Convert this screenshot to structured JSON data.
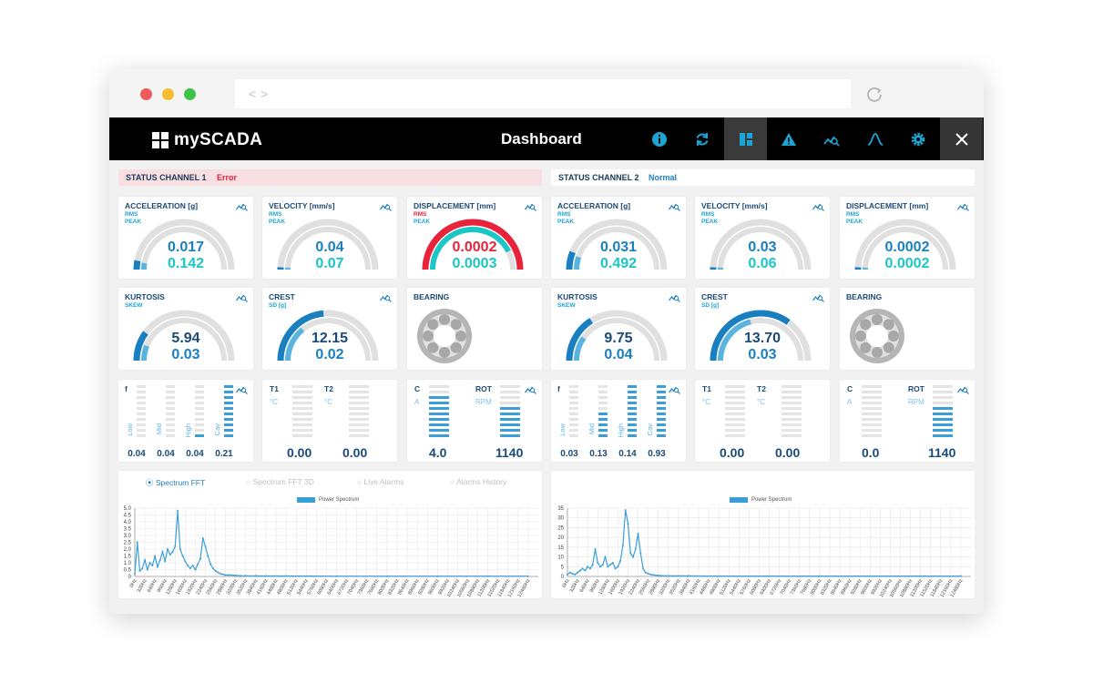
{
  "app": {
    "logo": "mySCADA",
    "title": "Dashboard"
  },
  "browser": {
    "back": "<",
    "forward": ">"
  },
  "nav": [
    {
      "name": "info-icon"
    },
    {
      "name": "refresh-icon"
    },
    {
      "name": "dashboard-icon"
    },
    {
      "name": "alarm-warning-icon"
    },
    {
      "name": "trend-search-icon"
    },
    {
      "name": "bell-curve-icon"
    },
    {
      "name": "gear-icon"
    },
    {
      "name": "close-icon"
    }
  ],
  "colors": {
    "accent": "#1aa5d6",
    "dark_blue": "#1a7fc1",
    "alarm": "#e8233b",
    "teal": "#1ac6c6",
    "gauge_bg": "#e0e0e0"
  },
  "channels": [
    {
      "status_label": "STATUS CHANNEL 1",
      "status_value": "Error",
      "acceleration": {
        "title": "ACCELERATION [g]",
        "sub1": "RMS",
        "sub2": "PEAK",
        "v1": "0.017",
        "v2": "0.142",
        "fraction": 0.06
      },
      "velocity": {
        "title": "VELOCITY [mm/s]",
        "sub1": "RMS",
        "sub2": "PEAK",
        "v1": "0.04",
        "v2": "0.07",
        "fraction": 0.01
      },
      "displacement": {
        "title": "DISPLACEMENT [mm]",
        "sub1": "RMS",
        "sub2": "PEAK",
        "v1": "0.0002",
        "v2": "0.0003",
        "fraction": 1.0,
        "alarm": true
      },
      "kurtosis": {
        "title": "KURTOSIS",
        "sub1": "SKEW",
        "v1": "5.94",
        "v2": "0.03",
        "fraction": 0.2
      },
      "crest": {
        "title": "CREST",
        "sub1": "SD [g]",
        "v1": "12.15",
        "v2": "0.02",
        "fraction": 0.47
      },
      "bearing": {
        "title": "BEARING"
      },
      "freq": {
        "head": "f",
        "labels": [
          "Low",
          "Mid",
          "High",
          "Cav"
        ],
        "values": [
          "0.04",
          "0.04",
          "0.04",
          "0.21"
        ],
        "levels": [
          0.0,
          0.0,
          0.1,
          1.0
        ]
      },
      "temp": {
        "t1": "T1",
        "t2": "T2",
        "unit1": "°C",
        "unit2": "°C",
        "v1": "0.00",
        "v2": "0.00",
        "levels": [
          0.0,
          0.0
        ]
      },
      "rot": {
        "c": "C",
        "rot": "ROT",
        "unit1": "A",
        "unit2": "RPM",
        "v1": "4.0",
        "v2": "1140",
        "levels": [
          0.8,
          0.6
        ]
      },
      "tabs": [
        "Spectrum FFT",
        "Spectrum FFT 3D",
        "Live Alarms",
        "Alarms History"
      ],
      "chart_data": {
        "type": "line",
        "legend": "Power Spectrum",
        "y_ticks": [
          "5.0",
          "4.5",
          "4.0",
          "3.5",
          "3.0",
          "2.5",
          "2.0",
          "1.5",
          "1.0",
          "0.5",
          "0"
        ],
        "ylim": [
          0,
          5.0
        ],
        "x_ticks": [
          "0Hz",
          "320Hz",
          "640Hz",
          "960Hz",
          "1280Hz",
          "1600Hz",
          "1920Hz",
          "2240Hz",
          "2560Hz",
          "2880Hz",
          "3200Hz",
          "3520Hz",
          "3840Hz",
          "4160Hz",
          "4480Hz",
          "4800Hz",
          "5120Hz",
          "5440Hz",
          "5760Hz",
          "6080Hz",
          "6400Hz",
          "6720Hz",
          "7040Hz",
          "7360Hz",
          "7680Hz",
          "8000Hz",
          "8320Hz",
          "8640Hz",
          "8960Hz",
          "9280Hz",
          "9600Hz",
          "9920Hz",
          "10240Hz",
          "10560Hz",
          "10880Hz",
          "11200Hz",
          "11520Hz",
          "11840Hz",
          "12160Hz",
          "12480Hz"
        ],
        "x": [
          0,
          80,
          160,
          240,
          320,
          400,
          480,
          560,
          640,
          720,
          800,
          880,
          960,
          1040,
          1120,
          1200,
          1280,
          1360,
          1440,
          1520,
          1600,
          1680,
          1760,
          1840,
          1920,
          2000,
          2080,
          2160,
          2240,
          2320,
          2400,
          2480,
          2560,
          2640,
          2720,
          2800,
          2880,
          2960,
          3040,
          3120,
          3200,
          3360,
          3520,
          3840,
          4160,
          4800,
          6400,
          8000,
          9600,
          11200,
          12480
        ],
        "y": [
          0.2,
          2.5,
          0.4,
          0.6,
          1.2,
          0.5,
          1.0,
          0.8,
          1.5,
          0.7,
          1.2,
          1.8,
          1.1,
          2.0,
          1.6,
          1.8,
          2.2,
          4.8,
          2.0,
          1.5,
          1.1,
          0.8,
          0.6,
          0.8,
          0.5,
          0.9,
          1.3,
          2.8,
          2.2,
          1.5,
          0.9,
          0.6,
          0.4,
          0.3,
          0.2,
          0.15,
          0.1,
          0.1,
          0.1,
          0.08,
          0.08,
          0.05,
          0.05,
          0.04,
          0.03,
          0.03,
          0.02,
          0.02,
          0.02,
          0.02,
          0.02
        ]
      }
    },
    {
      "status_label": "STATUS CHANNEL 2",
      "status_value": "Normal",
      "acceleration": {
        "title": "ACCELERATION [g]",
        "sub1": "RMS",
        "sub2": "PEAK",
        "v1": "0.031",
        "v2": "0.492",
        "fraction": 0.12
      },
      "velocity": {
        "title": "VELOCITY [mm/s]",
        "sub1": "RMS",
        "sub2": "PEAK",
        "v1": "0.03",
        "v2": "0.06",
        "fraction": 0.01
      },
      "displacement": {
        "title": "DISPLACEMENT [mm]",
        "sub1": "RMS",
        "sub2": "PEAK",
        "v1": "0.0002",
        "v2": "0.0002",
        "fraction": 0.01,
        "alarm": false
      },
      "kurtosis": {
        "title": "KURTOSIS",
        "sub1": "SKEW",
        "v1": "9.75",
        "v2": "0.04",
        "fraction": 0.32
      },
      "crest": {
        "title": "CREST",
        "sub1": "SD [g]",
        "v1": "13.70",
        "v2": "0.03",
        "fraction": 0.7
      },
      "bearing": {
        "title": "BEARING"
      },
      "freq": {
        "head": "f",
        "labels": [
          "Low",
          "Mid",
          "High",
          "Cav"
        ],
        "values": [
          "0.03",
          "0.13",
          "0.14",
          "0.93"
        ],
        "levels": [
          0.0,
          0.5,
          1.0,
          1.0
        ]
      },
      "temp": {
        "t1": "T1",
        "t2": "T2",
        "unit1": "°C",
        "unit2": "°C",
        "v1": "0.00",
        "v2": "0.00",
        "levels": [
          0.0,
          0.0
        ]
      },
      "rot": {
        "c": "C",
        "rot": "ROT",
        "unit1": "A",
        "unit2": "RPM",
        "v1": "0.0",
        "v2": "1140",
        "levels": [
          0.0,
          0.6
        ]
      },
      "tabs": [],
      "chart_data": {
        "type": "line",
        "legend": "Power Spectrum",
        "y_ticks": [
          "35",
          "30",
          "25",
          "20",
          "15",
          "10",
          "5",
          "0"
        ],
        "ylim": [
          0,
          35
        ],
        "x_ticks": [
          "0Hz",
          "320Hz",
          "640Hz",
          "960Hz",
          "1280Hz",
          "1600Hz",
          "1920Hz",
          "2240Hz",
          "2560Hz",
          "2880Hz",
          "3200Hz",
          "3520Hz",
          "3840Hz",
          "4160Hz",
          "4480Hz",
          "4800Hz",
          "5120Hz",
          "5440Hz",
          "5760Hz",
          "6080Hz",
          "6400Hz",
          "6720Hz",
          "7040Hz",
          "7360Hz",
          "7680Hz",
          "8000Hz",
          "8320Hz",
          "8640Hz",
          "8960Hz",
          "9280Hz",
          "9600Hz",
          "9920Hz",
          "10240Hz",
          "10560Hz",
          "10880Hz",
          "11200Hz",
          "11520Hz",
          "11840Hz",
          "12160Hz",
          "12480Hz"
        ],
        "x": [
          0,
          80,
          160,
          240,
          320,
          400,
          480,
          560,
          640,
          720,
          800,
          880,
          960,
          1040,
          1120,
          1200,
          1280,
          1360,
          1440,
          1520,
          1600,
          1680,
          1760,
          1840,
          1920,
          2000,
          2080,
          2160,
          2240,
          2320,
          2400,
          2480,
          2560,
          2640,
          2720,
          2800,
          2880,
          2960,
          3200,
          3840,
          4800,
          6400,
          8000,
          9600,
          11200,
          12480
        ],
        "y": [
          1,
          2,
          1.5,
          1,
          2,
          3,
          4,
          3,
          5,
          4,
          6,
          14,
          7,
          5,
          6,
          10,
          5,
          6,
          7,
          4,
          5,
          8,
          16,
          34,
          27,
          12,
          10,
          14,
          22,
          12,
          4,
          2,
          1.5,
          1,
          0.8,
          0.6,
          0.5,
          0.4,
          0.3,
          0.3,
          0.2,
          0.2,
          0.2,
          0.2,
          0.2,
          0.2
        ]
      }
    }
  ]
}
